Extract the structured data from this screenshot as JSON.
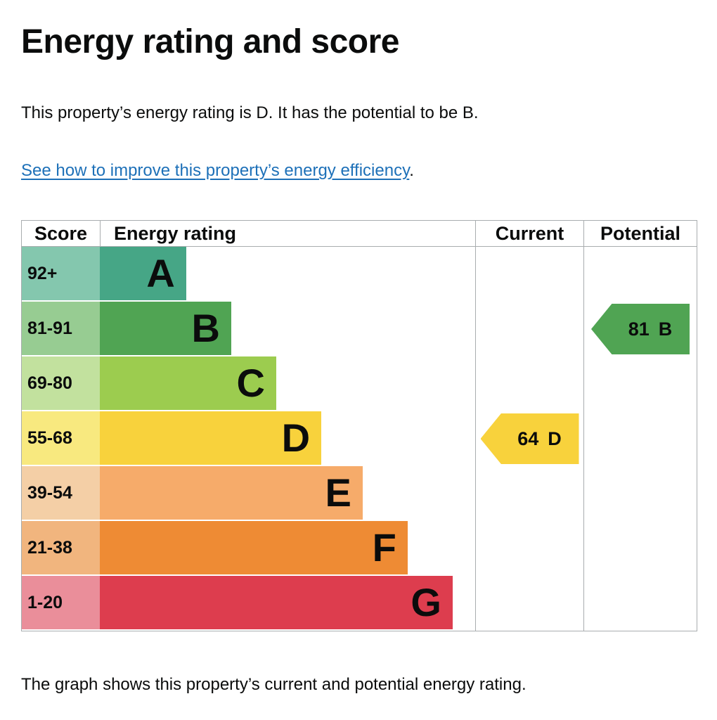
{
  "page": {
    "title": "Energy rating and score",
    "summary": "This property’s energy rating is D. It has the potential to be B.",
    "improve_link": "See how to improve this property’s energy efficiency",
    "improve_suffix": ".",
    "footer": "The graph shows this property’s current and potential energy rating."
  },
  "chart_data": {
    "type": "bar",
    "title": "Energy rating and score",
    "legend_position": "none",
    "headers": {
      "score": "Score",
      "rating": "Energy rating",
      "current": "Current",
      "potential": "Potential"
    },
    "bands": [
      {
        "letter": "A",
        "score": "92+",
        "color": "#46a686",
        "tint": "#84c7ae",
        "width_pct": 23
      },
      {
        "letter": "B",
        "score": "81-91",
        "color": "#50a453",
        "tint": "#97cc92",
        "width_pct": 35
      },
      {
        "letter": "C",
        "score": "69-80",
        "color": "#9ccc4f",
        "tint": "#c2e19e",
        "width_pct": 47
      },
      {
        "letter": "D",
        "score": "55-68",
        "color": "#f8d23c",
        "tint": "#f8e97f",
        "width_pct": 59
      },
      {
        "letter": "E",
        "score": "39-54",
        "color": "#f6ab6a",
        "tint": "#f4cfa6",
        "width_pct": 70
      },
      {
        "letter": "F",
        "score": "21-38",
        "color": "#ee8b34",
        "tint": "#f1b57e",
        "width_pct": 82
      },
      {
        "letter": "G",
        "score": "1-20",
        "color": "#dd3d4e",
        "tint": "#ea8e9a",
        "width_pct": 94
      }
    ],
    "current": {
      "value": 64,
      "letter": "D",
      "band_index": 3,
      "color": "#f8d23c"
    },
    "potential": {
      "value": 81,
      "letter": "B",
      "band_index": 1,
      "color": "#50a453"
    },
    "link_color": "#1d70b8"
  }
}
